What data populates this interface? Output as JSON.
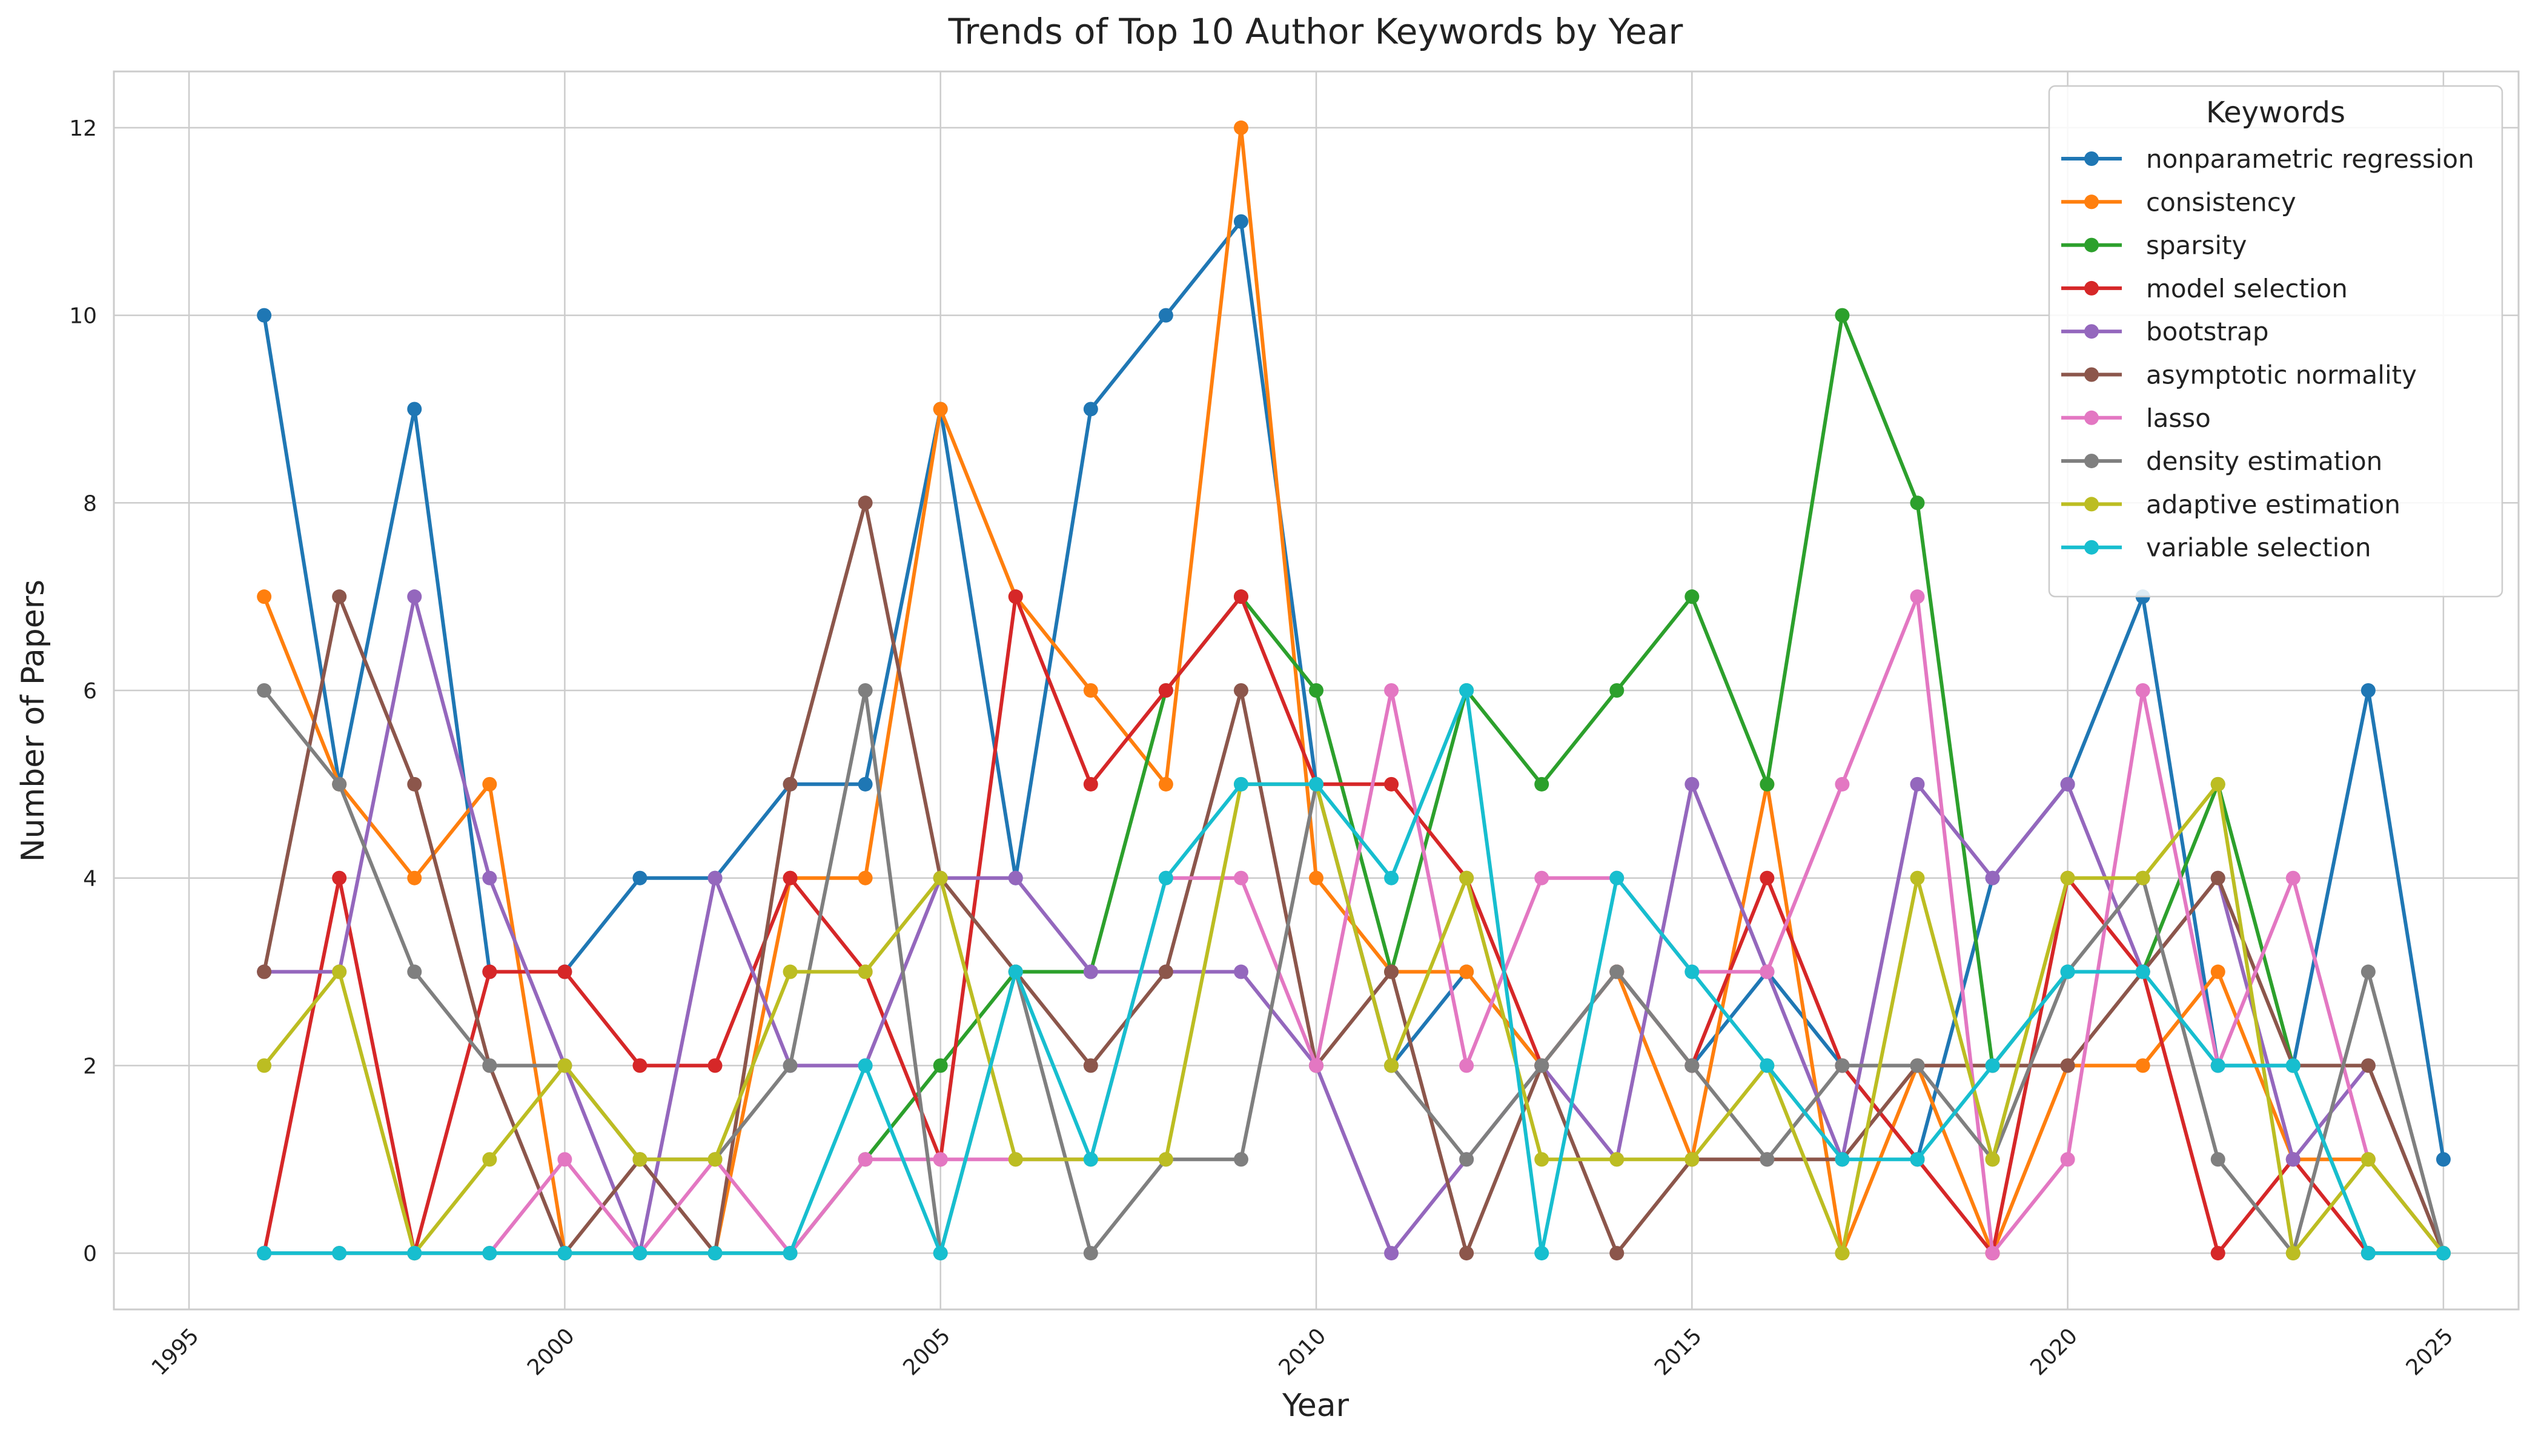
{
  "chart_data": {
    "type": "line",
    "title": "Trends of Top 10 Author Keywords by Year",
    "xlabel": "Year",
    "ylabel": "Number of Papers",
    "xlim": [
      1994,
      2026
    ],
    "ylim": [
      -0.6,
      12.6
    ],
    "xticks": [
      1995,
      2000,
      2005,
      2010,
      2015,
      2020,
      2025
    ],
    "yticks": [
      0,
      2,
      4,
      6,
      8,
      10,
      12
    ],
    "grid": true,
    "legend": {
      "title": "Keywords",
      "position": "top-right"
    },
    "x": [
      1996,
      1997,
      1998,
      1999,
      2000,
      2001,
      2002,
      2003,
      2004,
      2005,
      2006,
      2007,
      2008,
      2009,
      2010,
      2011,
      2012,
      2013,
      2014,
      2015,
      2016,
      2017,
      2018,
      2019,
      2020,
      2021,
      2022,
      2023,
      2024,
      2025
    ],
    "series": [
      {
        "name": "nonparametric regression",
        "color": "#1f77b4",
        "values": [
          10,
          5,
          9,
          3,
          3,
          4,
          4,
          5,
          5,
          9,
          4,
          9,
          10,
          11,
          5,
          2,
          3,
          2,
          3,
          2,
          3,
          2,
          1,
          4,
          5,
          7,
          2,
          2,
          6,
          1
        ]
      },
      {
        "name": "consistency",
        "color": "#ff7f0e",
        "values": [
          7,
          5,
          4,
          5,
          0,
          0,
          0,
          4,
          4,
          9,
          7,
          6,
          5,
          12,
          4,
          3,
          3,
          2,
          3,
          1,
          5,
          0,
          2,
          0,
          2,
          2,
          3,
          1,
          1,
          0
        ]
      },
      {
        "name": "sparsity",
        "color": "#2ca02c",
        "values": [
          0,
          0,
          0,
          0,
          0,
          0,
          0,
          0,
          1,
          2,
          3,
          3,
          6,
          7,
          6,
          3,
          6,
          5,
          6,
          7,
          5,
          10,
          8,
          2,
          3,
          3,
          5,
          2,
          0,
          0
        ]
      },
      {
        "name": "model selection",
        "color": "#d62728",
        "values": [
          0,
          4,
          0,
          3,
          3,
          2,
          2,
          4,
          3,
          1,
          7,
          5,
          6,
          7,
          5,
          5,
          4,
          2,
          3,
          2,
          4,
          2,
          1,
          0,
          4,
          3,
          0,
          1,
          0,
          0
        ]
      },
      {
        "name": "bootstrap",
        "color": "#9467bd",
        "values": [
          3,
          3,
          7,
          4,
          2,
          0,
          4,
          2,
          2,
          4,
          4,
          3,
          3,
          3,
          2,
          0,
          1,
          2,
          1,
          5,
          3,
          1,
          5,
          4,
          5,
          3,
          4,
          1,
          2,
          0
        ]
      },
      {
        "name": "asymptotic normality",
        "color": "#8c564b",
        "values": [
          3,
          7,
          5,
          2,
          0,
          1,
          0,
          5,
          8,
          4,
          3,
          2,
          3,
          6,
          2,
          3,
          0,
          2,
          0,
          1,
          1,
          1,
          2,
          2,
          2,
          3,
          4,
          2,
          2,
          0
        ]
      },
      {
        "name": "lasso",
        "color": "#e377c2",
        "values": [
          0,
          0,
          0,
          0,
          1,
          0,
          1,
          0,
          1,
          1,
          1,
          1,
          4,
          4,
          2,
          6,
          2,
          4,
          4,
          3,
          3,
          5,
          7,
          0,
          1,
          6,
          2,
          4,
          1,
          0
        ]
      },
      {
        "name": "density estimation",
        "color": "#7f7f7f",
        "values": [
          6,
          5,
          3,
          2,
          2,
          1,
          1,
          2,
          6,
          0,
          3,
          0,
          1,
          1,
          5,
          2,
          1,
          2,
          3,
          2,
          1,
          2,
          2,
          1,
          3,
          4,
          1,
          0,
          3,
          0
        ]
      },
      {
        "name": "adaptive estimation",
        "color": "#bcbd22",
        "values": [
          2,
          3,
          0,
          1,
          2,
          1,
          1,
          3,
          3,
          4,
          1,
          1,
          1,
          5,
          5,
          2,
          4,
          1,
          1,
          1,
          2,
          0,
          4,
          1,
          4,
          4,
          5,
          0,
          1,
          0
        ]
      },
      {
        "name": "variable selection",
        "color": "#17becf",
        "values": [
          0,
          0,
          0,
          0,
          0,
          0,
          0,
          0,
          2,
          0,
          3,
          1,
          4,
          5,
          5,
          4,
          6,
          0,
          4,
          3,
          2,
          1,
          1,
          2,
          3,
          3,
          2,
          2,
          0,
          0
        ]
      }
    ]
  }
}
